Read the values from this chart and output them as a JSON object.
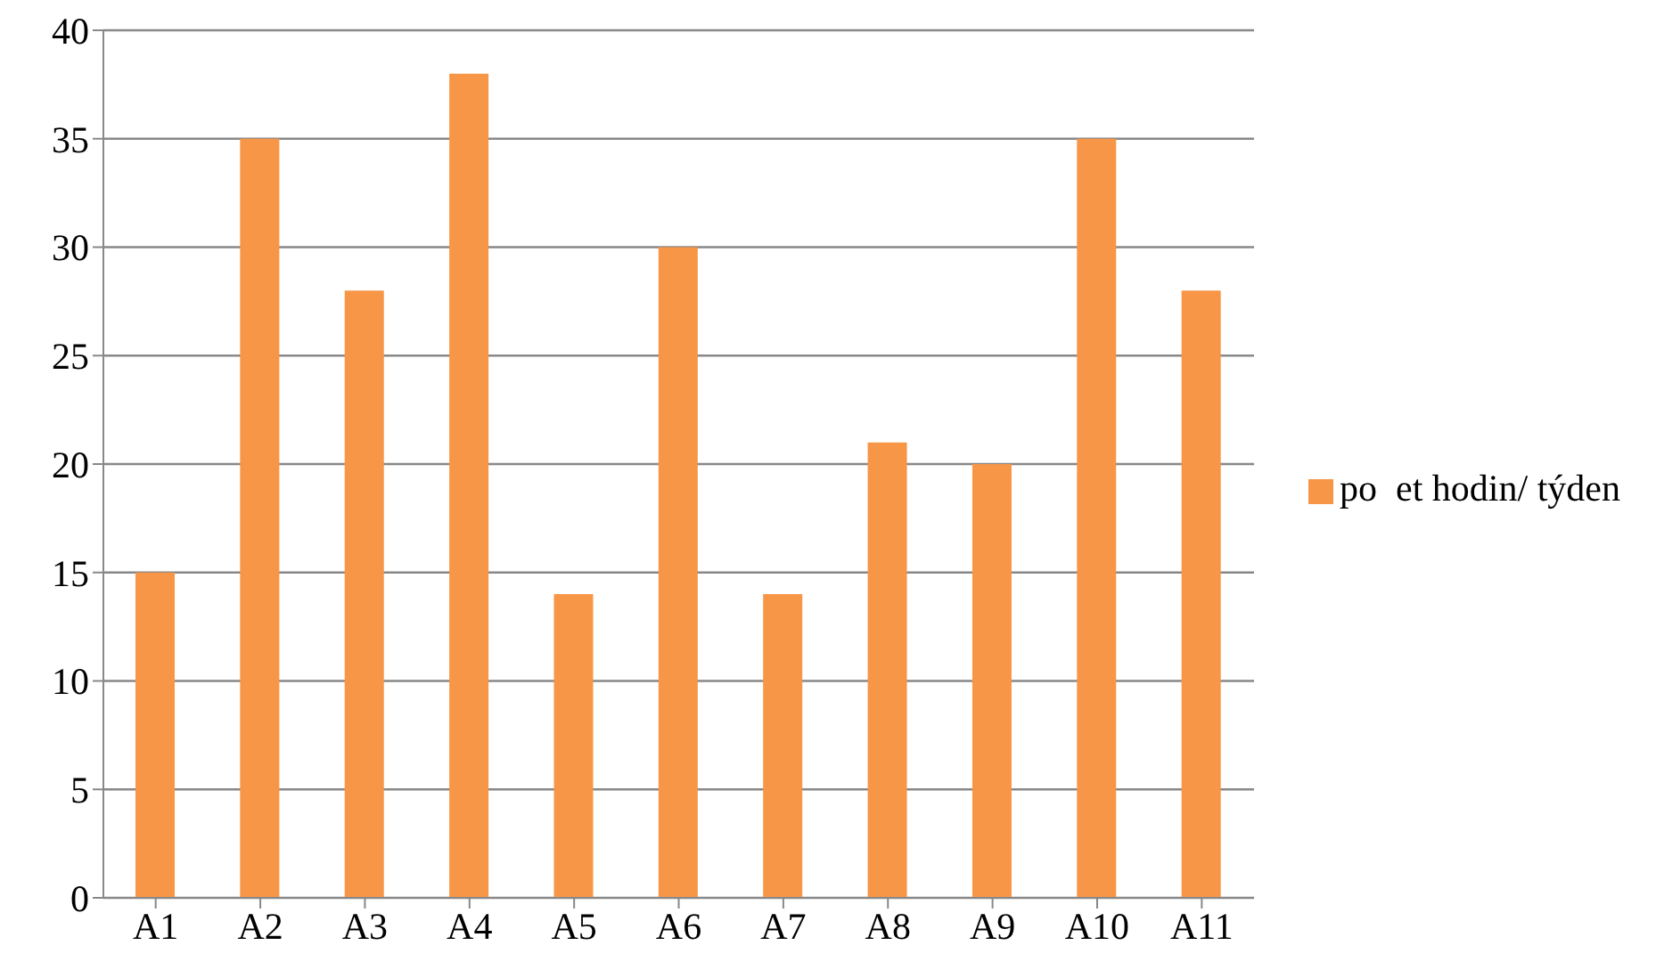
{
  "chart_data": {
    "type": "bar",
    "categories": [
      "A1",
      "A2",
      "A3",
      "A4",
      "A5",
      "A6",
      "A7",
      "A8",
      "A9",
      "A10",
      "A11"
    ],
    "series": [
      {
        "name": "po  et hodin/ týden",
        "color": "#f79646",
        "values": [
          15,
          35,
          28,
          38,
          14,
          30,
          14,
          21,
          20,
          35,
          28
        ]
      }
    ],
    "ylim": [
      0,
      40
    ],
    "yticks": [
      0,
      5,
      10,
      15,
      20,
      25,
      30,
      35,
      40
    ],
    "grid": "y",
    "legend": "right"
  }
}
